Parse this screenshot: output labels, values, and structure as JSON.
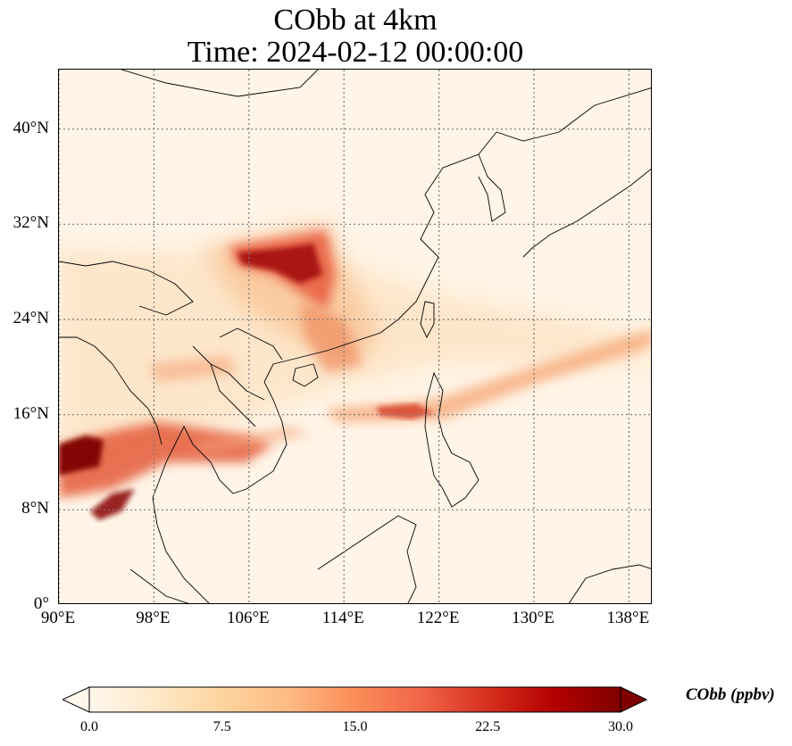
{
  "title": {
    "line1": "CObb at 4km",
    "line2": "Time: 2024-02-12 00:00:00"
  },
  "map": {
    "lon_range": [
      90,
      140
    ],
    "lat_range": [
      0,
      45
    ],
    "lon_ticks": [
      "90°E",
      "98°E",
      "106°E",
      "114°E",
      "122°E",
      "130°E",
      "138°E"
    ],
    "lon_tick_values": [
      90,
      98,
      106,
      114,
      122,
      130,
      138
    ],
    "lat_ticks": [
      "0°",
      "8°N",
      "16°N",
      "24°N",
      "32°N",
      "40°N"
    ],
    "lat_tick_values": [
      0,
      8,
      16,
      24,
      32,
      40
    ],
    "gridlines": "dotted",
    "land_color": "#fff4e6"
  },
  "colorbar": {
    "label": "CObb (ppbv)",
    "min": 0,
    "max": 30,
    "ticks": [
      "0.0",
      "7.5",
      "15.0",
      "22.5",
      "30.0"
    ],
    "tick_values": [
      0,
      7.5,
      15,
      22.5,
      30
    ],
    "colormap": "OrRd",
    "colors": [
      "#fff7ec",
      "#fee8c8",
      "#fdd49e",
      "#fdbb84",
      "#fc8d59",
      "#ef6548",
      "#d7301f",
      "#b30000",
      "#7f0000"
    ],
    "extend": "both"
  },
  "plumes": [
    {
      "name": "south-china-plume",
      "center_lon": 110.5,
      "center_lat": 29,
      "value": 28
    },
    {
      "name": "indochina-plume-west",
      "center_lon": 92,
      "center_lat": 13,
      "value": 30
    },
    {
      "name": "indochina-plume-south",
      "center_lon": 94,
      "center_lat": 8.5,
      "value": 28
    },
    {
      "name": "pacific-band",
      "center_lon": 118,
      "center_lat": 16.3,
      "value": 22
    },
    {
      "name": "hainan-plume",
      "center_lon": 114,
      "center_lat": 22.5,
      "value": 15
    }
  ]
}
